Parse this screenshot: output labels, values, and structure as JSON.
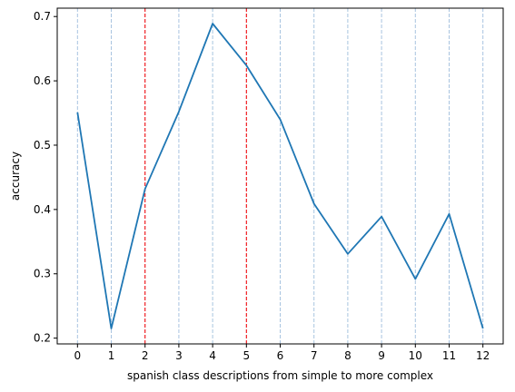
{
  "chart_data": {
    "type": "line",
    "title": "",
    "xlabel": "spanish class descriptions from simple to more complex",
    "ylabel": "accuracy",
    "x": [
      0,
      1,
      2,
      3,
      4,
      5,
      6,
      7,
      8,
      9,
      10,
      11,
      12
    ],
    "series": [
      {
        "values": [
          0.551,
          0.215,
          0.432,
          0.552,
          0.689,
          0.624,
          0.54,
          0.409,
          0.331,
          0.389,
          0.292,
          0.393,
          0.215
        ],
        "color": "#1f77b4"
      }
    ],
    "xticks": [
      "0",
      "1",
      "2",
      "3",
      "4",
      "5",
      "6",
      "7",
      "8",
      "9",
      "10",
      "11",
      "12"
    ],
    "yticks": [
      "0.2",
      "0.3",
      "0.4",
      "0.5",
      "0.6",
      "0.7"
    ],
    "xlim": [
      -0.6,
      12.6
    ],
    "ylim": [
      0.191,
      0.713
    ],
    "grid": "vertical dashed lines at each x value",
    "grid_color": "#a8c4e0",
    "highlight_lines": {
      "x": [
        2,
        5
      ],
      "color": "#ff0000",
      "style": "dashed"
    }
  }
}
